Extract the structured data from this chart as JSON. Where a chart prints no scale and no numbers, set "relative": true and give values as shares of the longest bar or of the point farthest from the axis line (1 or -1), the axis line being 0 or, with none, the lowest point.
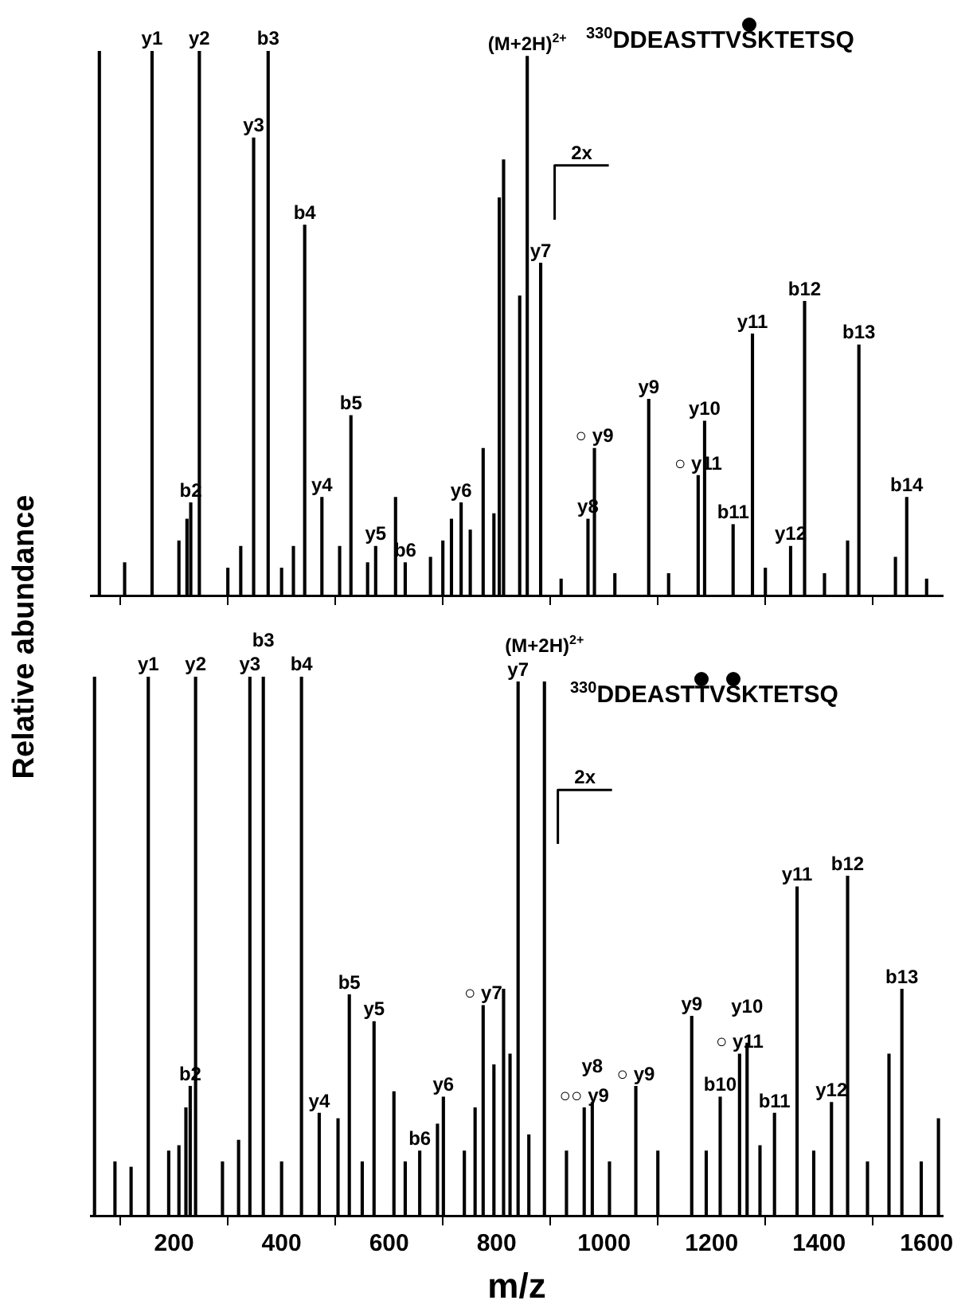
{
  "chart_data": [
    {
      "type": "bar",
      "title": "$^{330}$DDEASTTVSKTETSQ",
      "ylabel": "Relative abundance",
      "relative": true,
      "color": "#000000",
      "grid": false,
      "legend": false,
      "tick_labels": false,
      "xlim": [
        45,
        1630
      ],
      "xticks": [
        200,
        400,
        600,
        800,
        1000,
        1200,
        1400,
        1600
      ],
      "x": [
        61,
        108,
        159,
        209,
        224,
        231,
        247,
        300,
        324,
        348,
        375,
        400,
        422,
        443,
        475,
        508,
        529,
        560,
        575,
        612,
        630,
        677,
        700,
        716,
        734,
        751,
        775,
        795,
        805,
        813,
        843,
        857,
        882,
        920,
        970,
        982,
        1020,
        1083,
        1120,
        1175,
        1187,
        1240,
        1276,
        1300,
        1347,
        1373,
        1410,
        1453,
        1474,
        1542,
        1563,
        1600
      ],
      "values": [
        1.0,
        0.06,
        1.0,
        0.1,
        0.14,
        0.17,
        1.0,
        0.05,
        0.09,
        0.84,
        1.0,
        0.05,
        0.09,
        0.68,
        0.18,
        0.09,
        0.33,
        0.06,
        0.09,
        0.18,
        0.06,
        0.07,
        0.1,
        0.14,
        0.17,
        0.12,
        0.27,
        0.15,
        0.73,
        0.8,
        0.55,
        0.99,
        0.61,
        0.03,
        0.14,
        0.27,
        0.04,
        0.36,
        0.04,
        0.22,
        0.32,
        0.13,
        0.48,
        0.05,
        0.09,
        0.54,
        0.04,
        0.1,
        0.46,
        0.07,
        0.18,
        0.03
      ],
      "ref_lines": [
        {
          "axis": "x",
          "value": 908,
          "label": "2x"
        }
      ],
      "annotations": [
        {
          "text": "y1",
          "x": 159,
          "y": 1.0
        },
        {
          "text": "y2",
          "x": 247,
          "y": 1.0
        },
        {
          "text": "b3",
          "x": 375,
          "y": 1.0
        },
        {
          "text": "y3",
          "x": 348,
          "y": 0.84
        },
        {
          "text": "b2",
          "x": 231,
          "y": 0.17
        },
        {
          "text": "b4",
          "x": 443,
          "y": 0.68
        },
        {
          "text": "b5",
          "x": 529,
          "y": 0.33
        },
        {
          "text": "y4",
          "x": 475,
          "y": 0.18
        },
        {
          "text": "y5",
          "x": 575,
          "y": 0.09
        },
        {
          "text": "b6",
          "x": 630,
          "y": 0.06
        },
        {
          "text": "y6",
          "x": 734,
          "y": 0.17
        },
        {
          "text": "(M+2H)$^{2+}$",
          "x": 857,
          "y": 0.99
        },
        {
          "text": "y7",
          "x": 882,
          "y": 0.61
        },
        {
          "text": "○ y9",
          "x": 982,
          "y": 0.27
        },
        {
          "text": "y8",
          "x": 970,
          "y": 0.14
        },
        {
          "text": "y9",
          "x": 1083,
          "y": 0.36
        },
        {
          "text": "○ y11",
          "x": 1175,
          "y": 0.22
        },
        {
          "text": "y10",
          "x": 1187,
          "y": 0.32
        },
        {
          "text": "b11",
          "x": 1240,
          "y": 0.13
        },
        {
          "text": "y11",
          "x": 1276,
          "y": 0.48
        },
        {
          "text": "y12",
          "x": 1347,
          "y": 0.09
        },
        {
          "text": "b12",
          "x": 1373,
          "y": 0.54
        },
        {
          "text": "b13",
          "x": 1474,
          "y": 0.46
        },
        {
          "text": "b14",
          "x": 1563,
          "y": 0.18
        }
      ]
    },
    {
      "type": "bar",
      "title": "$^{330}$DDEASTTVSKTETSQ",
      "xlabel": "m/z",
      "relative": true,
      "color": "#000000",
      "grid": false,
      "legend": false,
      "tick_labels": "x",
      "xlim": [
        45,
        1630
      ],
      "xticks": [
        200,
        400,
        600,
        800,
        1000,
        1200,
        1400,
        1600
      ],
      "x": [
        52,
        90,
        120,
        152,
        190,
        209,
        222,
        230,
        240,
        290,
        320,
        341,
        366,
        400,
        437,
        470,
        505,
        526,
        550,
        572,
        609,
        630,
        657,
        690,
        701,
        740,
        760,
        775,
        795,
        813,
        825,
        840,
        860,
        889,
        930,
        963,
        978,
        1010,
        1059,
        1100,
        1163,
        1190,
        1216,
        1252,
        1266,
        1290,
        1317,
        1359,
        1390,
        1423,
        1453,
        1490,
        1530,
        1554,
        1590,
        1622
      ],
      "values": [
        1.0,
        0.1,
        0.09,
        1.0,
        0.12,
        0.13,
        0.2,
        0.24,
        1.0,
        0.1,
        0.14,
        1.0,
        1.0,
        0.1,
        1.0,
        0.19,
        0.18,
        0.41,
        0.1,
        0.36,
        0.23,
        0.1,
        0.12,
        0.17,
        0.22,
        0.12,
        0.2,
        0.39,
        0.28,
        0.42,
        0.3,
        0.99,
        0.15,
        0.99,
        0.12,
        0.2,
        0.21,
        0.1,
        0.24,
        0.12,
        0.37,
        0.12,
        0.22,
        0.3,
        0.32,
        0.13,
        0.19,
        0.61,
        0.12,
        0.21,
        0.63,
        0.1,
        0.3,
        0.42,
        0.1,
        0.18
      ],
      "ref_lines": [
        {
          "axis": "x",
          "value": 914,
          "label": "2x"
        }
      ],
      "annotations": [
        {
          "text": "y1",
          "x": 152,
          "y": 1.0
        },
        {
          "text": "y2",
          "x": 240,
          "y": 1.0
        },
        {
          "text": "y3",
          "x": 341,
          "y": 1.0
        },
        {
          "text": "b3",
          "x": 366,
          "y": 1.0
        },
        {
          "text": "b4",
          "x": 437,
          "y": 1.0
        },
        {
          "text": "b2",
          "x": 230,
          "y": 0.24
        },
        {
          "text": "y4",
          "x": 470,
          "y": 0.19
        },
        {
          "text": "b5",
          "x": 526,
          "y": 0.41
        },
        {
          "text": "y5",
          "x": 572,
          "y": 0.36
        },
        {
          "text": "b6",
          "x": 657,
          "y": 0.12
        },
        {
          "text": "y6",
          "x": 701,
          "y": 0.22
        },
        {
          "text": "○ y7",
          "x": 775,
          "y": 0.39
        },
        {
          "text": "y7",
          "x": 840,
          "y": 0.99
        },
        {
          "text": "(M+2H)$^{2+}$",
          "x": 889,
          "y": 0.99
        },
        {
          "text": "○○ y9",
          "x": 963,
          "y": 0.2
        },
        {
          "text": "y8",
          "x": 978,
          "y": 0.21
        },
        {
          "text": "○ y9",
          "x": 1059,
          "y": 0.24
        },
        {
          "text": "y9",
          "x": 1163,
          "y": 0.37
        },
        {
          "text": "b10",
          "x": 1216,
          "y": 0.22
        },
        {
          "text": "○ y11",
          "x": 1252,
          "y": 0.3
        },
        {
          "text": "y10",
          "x": 1266,
          "y": 0.32
        },
        {
          "text": "b11",
          "x": 1317,
          "y": 0.19
        },
        {
          "text": "y12",
          "x": 1423,
          "y": 0.21
        },
        {
          "text": "y11",
          "x": 1359,
          "y": 0.61
        },
        {
          "text": "b12",
          "x": 1453,
          "y": 0.63
        },
        {
          "text": "b13",
          "x": 1554,
          "y": 0.42
        }
      ]
    }
  ]
}
